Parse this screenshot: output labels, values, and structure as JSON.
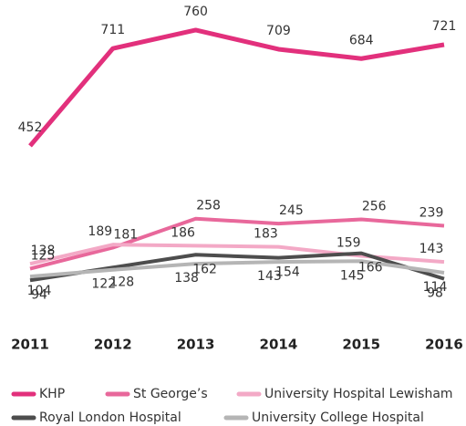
{
  "chart_data": {
    "type": "line",
    "categories": [
      "2011",
      "2012",
      "2013",
      "2014",
      "2015",
      "2016"
    ],
    "series": [
      {
        "name": "KHP",
        "color": "#e2307c",
        "values": [
          452,
          711,
          760,
          709,
          684,
          721
        ]
      },
      {
        "name": "St George’s",
        "color": "#e8689b",
        "values": [
          125,
          181,
          258,
          245,
          256,
          239
        ]
      },
      {
        "name": "University Hospital Lewisham",
        "color": "#f3a9c6",
        "values": [
          138,
          189,
          186,
          183,
          159,
          143
        ]
      },
      {
        "name": "Royal London Hospital",
        "color": "#4d4d4d",
        "values": [
          94,
          128,
          162,
          154,
          166,
          98
        ]
      },
      {
        "name": "University College Hospital",
        "color": "#b5b5b5",
        "values": [
          104,
          122,
          138,
          143,
          145,
          114
        ]
      }
    ],
    "ylim": [
      0,
      840
    ]
  }
}
